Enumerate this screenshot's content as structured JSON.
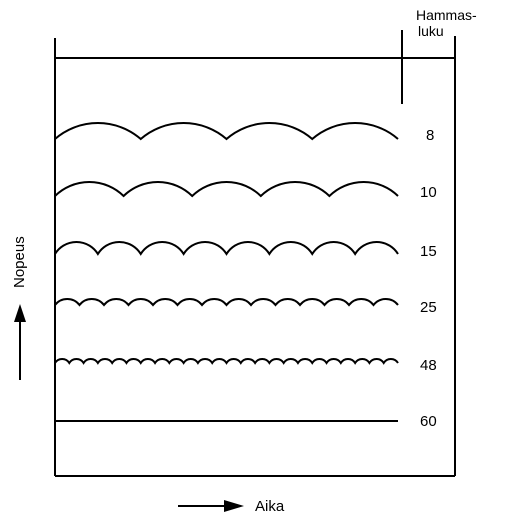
{
  "column_header": {
    "line1": "Hammas-",
    "line2": "luku"
  },
  "rows": [
    {
      "label": "8",
      "teeth": 8
    },
    {
      "label": "10",
      "teeth": 10
    },
    {
      "label": "15",
      "teeth": 15
    },
    {
      "label": "25",
      "teeth": 25
    },
    {
      "label": "48",
      "teeth": 48
    },
    {
      "label": "60",
      "teeth": 60
    }
  ],
  "y_axis": {
    "label": "Nopeus"
  },
  "x_axis": {
    "label": "Aika"
  },
  "colors": {
    "ink": "#000000",
    "background": "#ffffff"
  }
}
